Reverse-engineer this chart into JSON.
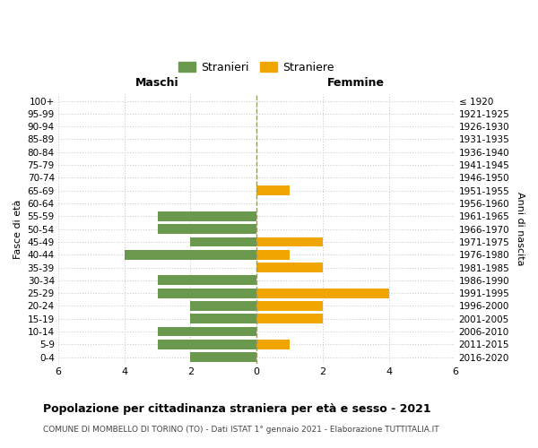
{
  "age_groups": [
    "100+",
    "95-99",
    "90-94",
    "85-89",
    "80-84",
    "75-79",
    "70-74",
    "65-69",
    "60-64",
    "55-59",
    "50-54",
    "45-49",
    "40-44",
    "35-39",
    "30-34",
    "25-29",
    "20-24",
    "15-19",
    "10-14",
    "5-9",
    "0-4"
  ],
  "birth_years": [
    "≤ 1920",
    "1921-1925",
    "1926-1930",
    "1931-1935",
    "1936-1940",
    "1941-1945",
    "1946-1950",
    "1951-1955",
    "1956-1960",
    "1961-1965",
    "1966-1970",
    "1971-1975",
    "1976-1980",
    "1981-1985",
    "1986-1990",
    "1991-1995",
    "1996-2000",
    "2001-2005",
    "2006-2010",
    "2011-2015",
    "2016-2020"
  ],
  "males": [
    0,
    0,
    0,
    0,
    0,
    0,
    0,
    0,
    0,
    3,
    3,
    2,
    4,
    0,
    3,
    3,
    2,
    2,
    3,
    3,
    2
  ],
  "females": [
    0,
    0,
    0,
    0,
    0,
    0,
    0,
    1,
    0,
    0,
    0,
    2,
    1,
    2,
    0,
    4,
    2,
    2,
    0,
    1,
    0
  ],
  "male_color": "#6a994e",
  "female_color": "#f0a500",
  "title": "Popolazione per cittadinanza straniera per età e sesso - 2021",
  "subtitle": "COMUNE DI MOMBELLO DI TORINO (TO) - Dati ISTAT 1° gennaio 2021 - Elaborazione TUTTITALIA.IT",
  "xlabel_left": "Maschi",
  "xlabel_right": "Femmine",
  "ylabel_left": "Fasce di età",
  "ylabel_right": "Anni di nascita",
  "legend_male": "Stranieri",
  "legend_female": "Straniere",
  "xlim": 6,
  "bar_height": 0.75,
  "bg_color": "#ffffff",
  "grid_color": "#cccccc",
  "dashed_line_color": "#999966"
}
